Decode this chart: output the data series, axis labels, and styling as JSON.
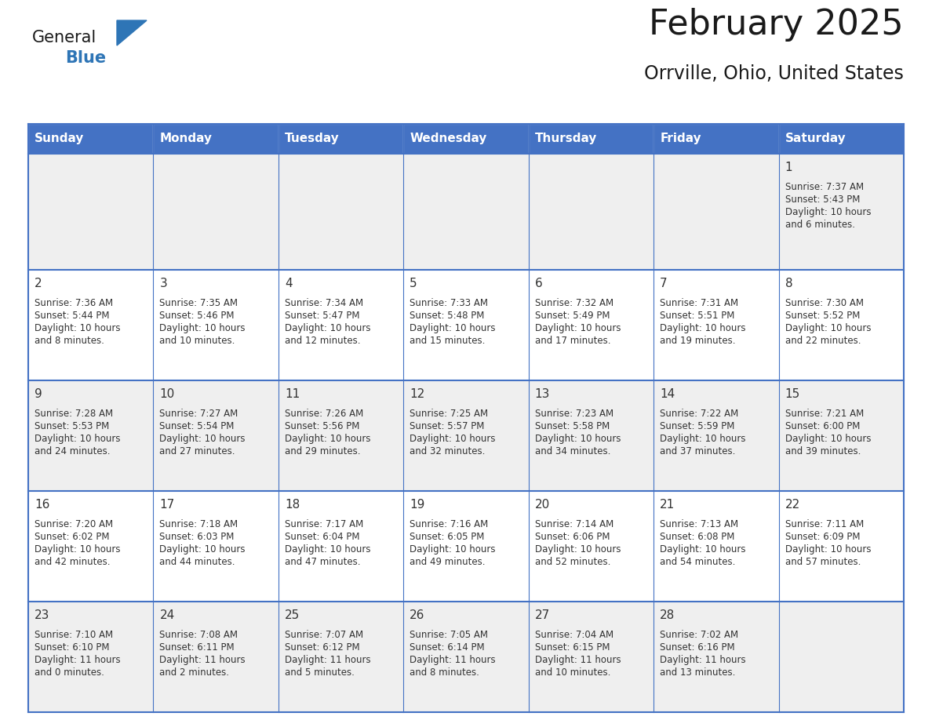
{
  "title": "February 2025",
  "subtitle": "Orrville, Ohio, United States",
  "days_of_week": [
    "Sunday",
    "Monday",
    "Tuesday",
    "Wednesday",
    "Thursday",
    "Friday",
    "Saturday"
  ],
  "header_bg": "#4472C4",
  "header_text": "#FFFFFF",
  "cell_bg_white": "#FFFFFF",
  "cell_bg_gray": "#EFEFEF",
  "cell_border_color": "#4472C4",
  "text_color": "#333333",
  "day_num_color": "#333333",
  "title_color": "#1a1a1a",
  "logo_color_general": "#1a1a1a",
  "logo_color_blue": "#2E75B6",
  "logo_triangle_color": "#2E75B6",
  "calendar_data": [
    [
      null,
      null,
      null,
      null,
      null,
      null,
      {
        "day": 1,
        "sunrise": "7:37 AM",
        "sunset": "5:43 PM",
        "daylight": "10 hours",
        "daylight2": "and 6 minutes."
      }
    ],
    [
      {
        "day": 2,
        "sunrise": "7:36 AM",
        "sunset": "5:44 PM",
        "daylight": "10 hours",
        "daylight2": "and 8 minutes."
      },
      {
        "day": 3,
        "sunrise": "7:35 AM",
        "sunset": "5:46 PM",
        "daylight": "10 hours",
        "daylight2": "and 10 minutes."
      },
      {
        "day": 4,
        "sunrise": "7:34 AM",
        "sunset": "5:47 PM",
        "daylight": "10 hours",
        "daylight2": "and 12 minutes."
      },
      {
        "day": 5,
        "sunrise": "7:33 AM",
        "sunset": "5:48 PM",
        "daylight": "10 hours",
        "daylight2": "and 15 minutes."
      },
      {
        "day": 6,
        "sunrise": "7:32 AM",
        "sunset": "5:49 PM",
        "daylight": "10 hours",
        "daylight2": "and 17 minutes."
      },
      {
        "day": 7,
        "sunrise": "7:31 AM",
        "sunset": "5:51 PM",
        "daylight": "10 hours",
        "daylight2": "and 19 minutes."
      },
      {
        "day": 8,
        "sunrise": "7:30 AM",
        "sunset": "5:52 PM",
        "daylight": "10 hours",
        "daylight2": "and 22 minutes."
      }
    ],
    [
      {
        "day": 9,
        "sunrise": "7:28 AM",
        "sunset": "5:53 PM",
        "daylight": "10 hours",
        "daylight2": "and 24 minutes."
      },
      {
        "day": 10,
        "sunrise": "7:27 AM",
        "sunset": "5:54 PM",
        "daylight": "10 hours",
        "daylight2": "and 27 minutes."
      },
      {
        "day": 11,
        "sunrise": "7:26 AM",
        "sunset": "5:56 PM",
        "daylight": "10 hours",
        "daylight2": "and 29 minutes."
      },
      {
        "day": 12,
        "sunrise": "7:25 AM",
        "sunset": "5:57 PM",
        "daylight": "10 hours",
        "daylight2": "and 32 minutes."
      },
      {
        "day": 13,
        "sunrise": "7:23 AM",
        "sunset": "5:58 PM",
        "daylight": "10 hours",
        "daylight2": "and 34 minutes."
      },
      {
        "day": 14,
        "sunrise": "7:22 AM",
        "sunset": "5:59 PM",
        "daylight": "10 hours",
        "daylight2": "and 37 minutes."
      },
      {
        "day": 15,
        "sunrise": "7:21 AM",
        "sunset": "6:00 PM",
        "daylight": "10 hours",
        "daylight2": "and 39 minutes."
      }
    ],
    [
      {
        "day": 16,
        "sunrise": "7:20 AM",
        "sunset": "6:02 PM",
        "daylight": "10 hours",
        "daylight2": "and 42 minutes."
      },
      {
        "day": 17,
        "sunrise": "7:18 AM",
        "sunset": "6:03 PM",
        "daylight": "10 hours",
        "daylight2": "and 44 minutes."
      },
      {
        "day": 18,
        "sunrise": "7:17 AM",
        "sunset": "6:04 PM",
        "daylight": "10 hours",
        "daylight2": "and 47 minutes."
      },
      {
        "day": 19,
        "sunrise": "7:16 AM",
        "sunset": "6:05 PM",
        "daylight": "10 hours",
        "daylight2": "and 49 minutes."
      },
      {
        "day": 20,
        "sunrise": "7:14 AM",
        "sunset": "6:06 PM",
        "daylight": "10 hours",
        "daylight2": "and 52 minutes."
      },
      {
        "day": 21,
        "sunrise": "7:13 AM",
        "sunset": "6:08 PM",
        "daylight": "10 hours",
        "daylight2": "and 54 minutes."
      },
      {
        "day": 22,
        "sunrise": "7:11 AM",
        "sunset": "6:09 PM",
        "daylight": "10 hours",
        "daylight2": "and 57 minutes."
      }
    ],
    [
      {
        "day": 23,
        "sunrise": "7:10 AM",
        "sunset": "6:10 PM",
        "daylight": "11 hours",
        "daylight2": "and 0 minutes."
      },
      {
        "day": 24,
        "sunrise": "7:08 AM",
        "sunset": "6:11 PM",
        "daylight": "11 hours",
        "daylight2": "and 2 minutes."
      },
      {
        "day": 25,
        "sunrise": "7:07 AM",
        "sunset": "6:12 PM",
        "daylight": "11 hours",
        "daylight2": "and 5 minutes."
      },
      {
        "day": 26,
        "sunrise": "7:05 AM",
        "sunset": "6:14 PM",
        "daylight": "11 hours",
        "daylight2": "and 8 minutes."
      },
      {
        "day": 27,
        "sunrise": "7:04 AM",
        "sunset": "6:15 PM",
        "daylight": "11 hours",
        "daylight2": "and 10 minutes."
      },
      {
        "day": 28,
        "sunrise": "7:02 AM",
        "sunset": "6:16 PM",
        "daylight": "11 hours",
        "daylight2": "and 13 minutes."
      },
      null
    ]
  ]
}
